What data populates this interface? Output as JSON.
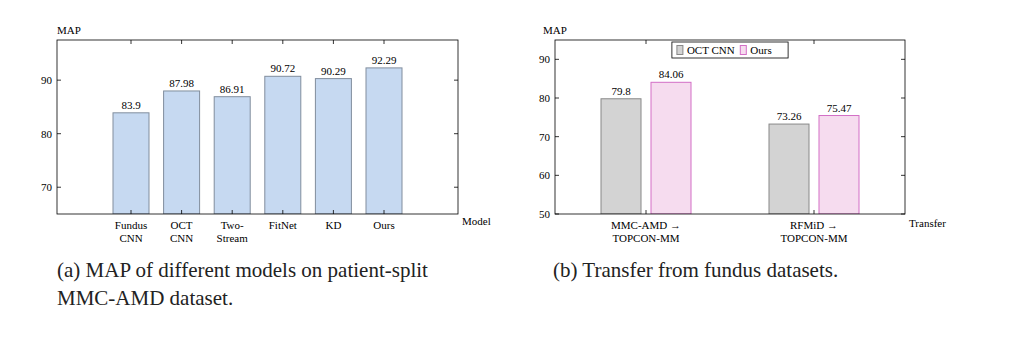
{
  "chart_data": [
    {
      "type": "bar",
      "title": "(a) MAP of different models on patient-split\nMMC-AMD dataset.",
      "y_label": "MAP",
      "x_label": "Model",
      "categories": [
        "Fundus\nCNN",
        "OCT\nCNN",
        "Two-\nStream",
        "FitNet",
        "KD",
        "Ours"
      ],
      "values": [
        83.9,
        87.98,
        86.91,
        90.72,
        90.29,
        92.29
      ],
      "color": "#c6d9f1",
      "ylim": [
        65,
        97.5
      ],
      "yticks": [
        70,
        80,
        90
      ],
      "data_labels": true
    },
    {
      "type": "bar",
      "title": "(b) Transfer from fundus datasets.",
      "y_label": "MAP",
      "x_label": "Transfer",
      "categories": [
        "MMC-AMD →\nTOPCON-MM",
        "RFMiD →\nTOPCON-MM"
      ],
      "series": [
        {
          "name": "OCT CNN",
          "color": "#d3d3d3",
          "values": [
            79.8,
            73.26
          ]
        },
        {
          "name": "Ours",
          "color": "#f6dcef",
          "values": [
            84.06,
            75.47
          ]
        }
      ],
      "ylim": [
        50,
        95
      ],
      "yticks": [
        50,
        60,
        70,
        80,
        90
      ],
      "legend": "top",
      "data_labels": true
    }
  ]
}
